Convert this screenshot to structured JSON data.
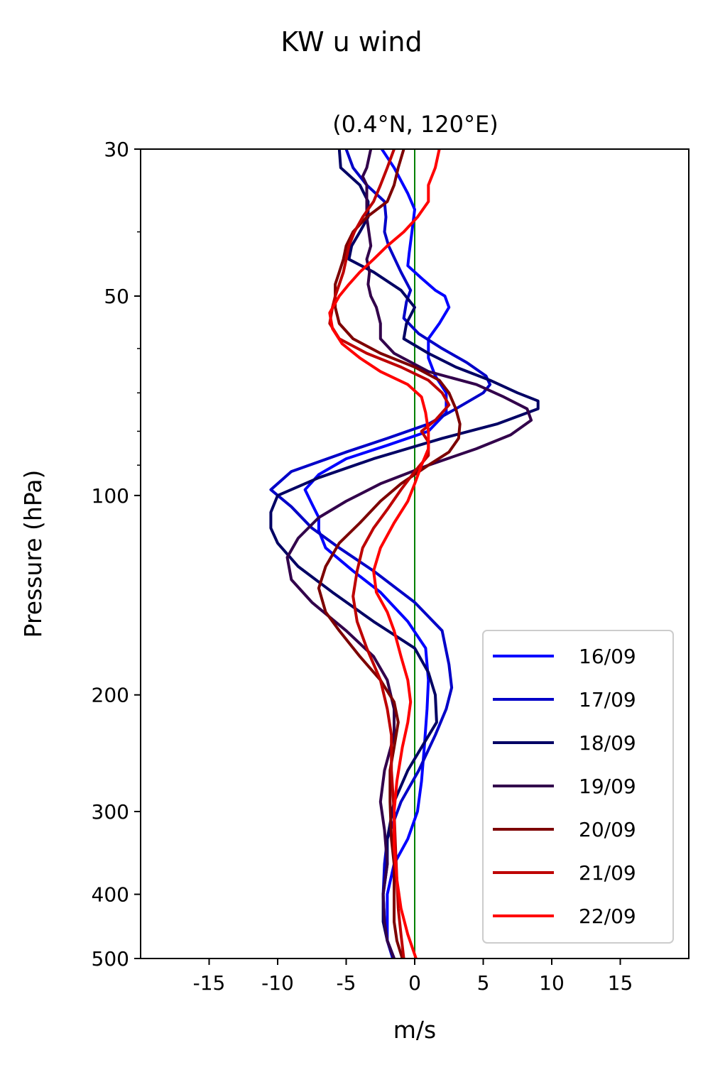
{
  "chart_data": {
    "type": "line",
    "suptitle": "KW u wind",
    "title": "(0.4°N, 120°E)",
    "xlabel": "m/s",
    "ylabel": "Pressure (hPa)",
    "xlim": [
      -20,
      20
    ],
    "ylim": [
      500,
      30
    ],
    "yscale": "log",
    "xticks": [
      -15,
      -10,
      -5,
      0,
      5,
      10,
      15
    ],
    "xtick_labels": [
      "-15",
      "-10",
      "-5",
      "0",
      "5",
      "10",
      "15"
    ],
    "yticks": [
      30,
      50,
      100,
      200,
      300,
      400,
      500
    ],
    "ytick_labels": [
      "30",
      "50",
      "100",
      "200",
      "300",
      "400",
      "500"
    ],
    "yminor_ticks": [
      40,
      60,
      70,
      80,
      90
    ],
    "zero_line": {
      "x": 0,
      "color": "#008000"
    },
    "legend_position": "lower-right",
    "grid": false,
    "series": [
      {
        "name": "16/09",
        "color": "#0000ff",
        "points": [
          [
            -2.4,
            30
          ],
          [
            -1.5,
            32
          ],
          [
            -0.5,
            35
          ],
          [
            0,
            37
          ],
          [
            -0.2,
            40
          ],
          [
            -0.4,
            43
          ],
          [
            -0.5,
            45
          ],
          [
            0.5,
            47
          ],
          [
            1.5,
            49
          ],
          [
            2.2,
            50
          ],
          [
            2.5,
            52
          ],
          [
            1.8,
            55
          ],
          [
            1,
            58
          ],
          [
            1,
            62
          ],
          [
            1.5,
            66
          ],
          [
            2.3,
            70
          ],
          [
            2.3,
            75
          ],
          [
            1,
            80
          ],
          [
            -2,
            84
          ],
          [
            -5,
            88
          ],
          [
            -7,
            93
          ],
          [
            -8,
            98
          ],
          [
            -7.5,
            103
          ],
          [
            -7,
            108
          ],
          [
            -7,
            113
          ],
          [
            -6.5,
            120
          ],
          [
            -4.5,
            130
          ],
          [
            -2.5,
            140
          ],
          [
            -0.5,
            155
          ],
          [
            0.8,
            170
          ],
          [
            1,
            190
          ],
          [
            0.9,
            210
          ],
          [
            0.7,
            240
          ],
          [
            0.5,
            270
          ],
          [
            0.2,
            300
          ],
          [
            -0.5,
            330
          ],
          [
            -1.5,
            360
          ],
          [
            -2,
            400
          ],
          [
            -2,
            440
          ],
          [
            -2,
            470
          ],
          [
            -1.5,
            500
          ]
        ]
      },
      {
        "name": "17/09",
        "color": "#0000c8",
        "points": [
          [
            -5,
            30
          ],
          [
            -4.5,
            32
          ],
          [
            -3.5,
            34
          ],
          [
            -2.2,
            36
          ],
          [
            -2.1,
            38
          ],
          [
            -2.2,
            40
          ],
          [
            -1.9,
            42
          ],
          [
            -1,
            46
          ],
          [
            -0.3,
            49
          ],
          [
            -0.6,
            51
          ],
          [
            -0.8,
            54
          ],
          [
            0.3,
            57
          ],
          [
            2,
            60
          ],
          [
            3.8,
            63
          ],
          [
            5.2,
            66
          ],
          [
            5.5,
            68
          ],
          [
            5,
            70
          ],
          [
            3,
            74
          ],
          [
            1,
            78
          ],
          [
            -2,
            82
          ],
          [
            -5,
            86
          ],
          [
            -9,
            92
          ],
          [
            -10.5,
            98
          ],
          [
            -9,
            104
          ],
          [
            -7.5,
            112
          ],
          [
            -5.5,
            120
          ],
          [
            -3,
            130
          ],
          [
            0,
            145
          ],
          [
            2,
            160
          ],
          [
            2.5,
            180
          ],
          [
            2.7,
            195
          ],
          [
            2.3,
            210
          ],
          [
            1.5,
            230
          ],
          [
            0.3,
            260
          ],
          [
            -1,
            290
          ],
          [
            -2,
            330
          ],
          [
            -2.2,
            360
          ],
          [
            -2.3,
            400
          ],
          [
            -2.2,
            440
          ],
          [
            -2,
            470
          ],
          [
            -1.6,
            500
          ]
        ]
      },
      {
        "name": "18/09",
        "color": "#000064",
        "points": [
          [
            -5.5,
            30
          ],
          [
            -5.4,
            32
          ],
          [
            -4,
            34
          ],
          [
            -3.4,
            36
          ],
          [
            -3.4,
            38
          ],
          [
            -4,
            40
          ],
          [
            -4.6,
            42
          ],
          [
            -4.8,
            44
          ],
          [
            -3,
            46
          ],
          [
            -1,
            49
          ],
          [
            0,
            52
          ],
          [
            -0.6,
            55
          ],
          [
            -0.8,
            58
          ],
          [
            1,
            61
          ],
          [
            3,
            64
          ],
          [
            5.5,
            67
          ],
          [
            7.5,
            70
          ],
          [
            9,
            72
          ],
          [
            9,
            74
          ],
          [
            6,
            78
          ],
          [
            2,
            82
          ],
          [
            -3,
            88
          ],
          [
            -7,
            94
          ],
          [
            -10,
            100
          ],
          [
            -10.5,
            106
          ],
          [
            -10.5,
            112
          ],
          [
            -10,
            118
          ],
          [
            -8.5,
            128
          ],
          [
            -6,
            140
          ],
          [
            -3,
            155
          ],
          [
            0,
            170
          ],
          [
            1,
            185
          ],
          [
            1.5,
            200
          ],
          [
            1.6,
            220
          ],
          [
            0.5,
            240
          ],
          [
            -0.5,
            260
          ],
          [
            -1.5,
            290
          ],
          [
            -2,
            330
          ],
          [
            -2,
            360
          ],
          [
            -2.3,
            400
          ],
          [
            -2.3,
            440
          ],
          [
            -2,
            470
          ],
          [
            -1.5,
            500
          ]
        ]
      },
      {
        "name": "19/09",
        "color": "#32004b",
        "points": [
          [
            -3.2,
            30
          ],
          [
            -3.5,
            32
          ],
          [
            -3.8,
            33
          ],
          [
            -3.5,
            34
          ],
          [
            -3.5,
            36
          ],
          [
            -3.5,
            38
          ],
          [
            -3.2,
            42
          ],
          [
            -3.5,
            44
          ],
          [
            -3.3,
            46
          ],
          [
            -3.4,
            48
          ],
          [
            -3.2,
            50
          ],
          [
            -2.8,
            52
          ],
          [
            -2.5,
            55
          ],
          [
            -2.5,
            58
          ],
          [
            -1.5,
            61
          ],
          [
            1,
            65
          ],
          [
            4.5,
            68
          ],
          [
            6.5,
            71
          ],
          [
            8.2,
            74
          ],
          [
            8.5,
            77
          ],
          [
            7,
            81
          ],
          [
            4.5,
            85
          ],
          [
            1,
            90
          ],
          [
            -2.5,
            96
          ],
          [
            -5,
            102
          ],
          [
            -7,
            108
          ],
          [
            -8.5,
            116
          ],
          [
            -9.3,
            124
          ],
          [
            -9,
            134
          ],
          [
            -7.5,
            145
          ],
          [
            -5,
            160
          ],
          [
            -3,
            175
          ],
          [
            -2,
            190
          ],
          [
            -1.5,
            210
          ],
          [
            -1.5,
            230
          ],
          [
            -2.2,
            260
          ],
          [
            -2.5,
            290
          ],
          [
            -2.2,
            320
          ],
          [
            -2,
            360
          ],
          [
            -2.3,
            400
          ],
          [
            -2.2,
            440
          ],
          [
            -2,
            470
          ],
          [
            -1.5,
            500
          ]
        ]
      },
      {
        "name": "20/09",
        "color": "#7d0000",
        "points": [
          [
            -0.8,
            30
          ],
          [
            -1.2,
            32
          ],
          [
            -1.5,
            34
          ],
          [
            -2,
            36
          ],
          [
            -3.5,
            38
          ],
          [
            -4.5,
            40
          ],
          [
            -5,
            42
          ],
          [
            -5.2,
            44
          ],
          [
            -5.5,
            46
          ],
          [
            -5.8,
            48
          ],
          [
            -5.8,
            50
          ],
          [
            -5.8,
            52
          ],
          [
            -5.5,
            55
          ],
          [
            -4.5,
            58
          ],
          [
            -2.5,
            61
          ],
          [
            0,
            64
          ],
          [
            1.8,
            67
          ],
          [
            2.5,
            70
          ],
          [
            3,
            74
          ],
          [
            3.3,
            78
          ],
          [
            3.2,
            82
          ],
          [
            2.5,
            86
          ],
          [
            1,
            90
          ],
          [
            -1,
            96
          ],
          [
            -2.5,
            102
          ],
          [
            -4,
            110
          ],
          [
            -5.5,
            118
          ],
          [
            -6.5,
            128
          ],
          [
            -7,
            138
          ],
          [
            -6.5,
            150
          ],
          [
            -5.5,
            160
          ],
          [
            -4,
            175
          ],
          [
            -2.5,
            190
          ],
          [
            -1.5,
            205
          ],
          [
            -1.2,
            220
          ],
          [
            -1.5,
            240
          ],
          [
            -1.8,
            260
          ],
          [
            -1.8,
            290
          ],
          [
            -1.7,
            330
          ],
          [
            -1.5,
            360
          ],
          [
            -1.5,
            400
          ],
          [
            -1.5,
            440
          ],
          [
            -1.3,
            470
          ],
          [
            -0.9,
            500
          ]
        ]
      },
      {
        "name": "21/09",
        "color": "#be0000",
        "points": [
          [
            -1.5,
            30
          ],
          [
            -2,
            32
          ],
          [
            -2.5,
            34
          ],
          [
            -3,
            36
          ],
          [
            -3.8,
            38
          ],
          [
            -4.4,
            40
          ],
          [
            -4.8,
            42
          ],
          [
            -5,
            44
          ],
          [
            -5.2,
            46
          ],
          [
            -5.5,
            48
          ],
          [
            -5.8,
            50
          ],
          [
            -6,
            52
          ],
          [
            -6.2,
            55
          ],
          [
            -5.5,
            58
          ],
          [
            -3.5,
            61
          ],
          [
            -1,
            64
          ],
          [
            1,
            67
          ],
          [
            2,
            70
          ],
          [
            2.5,
            73
          ],
          [
            1.5,
            77
          ],
          [
            0.5,
            80
          ],
          [
            1,
            83
          ],
          [
            1,
            87
          ],
          [
            0,
            92
          ],
          [
            -1,
            98
          ],
          [
            -2,
            105
          ],
          [
            -3,
            112
          ],
          [
            -3.8,
            120
          ],
          [
            -4.2,
            130
          ],
          [
            -4.5,
            142
          ],
          [
            -4.2,
            155
          ],
          [
            -3.5,
            170
          ],
          [
            -2.5,
            190
          ],
          [
            -2,
            210
          ],
          [
            -1.7,
            230
          ],
          [
            -1.7,
            260
          ],
          [
            -1.5,
            300
          ],
          [
            -1.4,
            340
          ],
          [
            -1.3,
            380
          ],
          [
            -1.2,
            420
          ],
          [
            -1,
            460
          ],
          [
            -0.8,
            500
          ]
        ]
      },
      {
        "name": "22/09",
        "color": "#ff0000",
        "points": [
          [
            1.8,
            30
          ],
          [
            1.5,
            32
          ],
          [
            1,
            34
          ],
          [
            1,
            36
          ],
          [
            0.2,
            38
          ],
          [
            -0.8,
            40
          ],
          [
            -2,
            42
          ],
          [
            -3,
            44
          ],
          [
            -4,
            46
          ],
          [
            -4.8,
            48
          ],
          [
            -5.5,
            50
          ],
          [
            -6.2,
            53
          ],
          [
            -6,
            56
          ],
          [
            -5.3,
            59
          ],
          [
            -4,
            62
          ],
          [
            -2.5,
            65
          ],
          [
            -0.5,
            68
          ],
          [
            0.5,
            71
          ],
          [
            0.8,
            75
          ],
          [
            1,
            80
          ],
          [
            1,
            85
          ],
          [
            0.5,
            90
          ],
          [
            0,
            96
          ],
          [
            -0.5,
            102
          ],
          [
            -1.5,
            110
          ],
          [
            -2.5,
            120
          ],
          [
            -3,
            130
          ],
          [
            -2.8,
            140
          ],
          [
            -2,
            150
          ],
          [
            -1.5,
            160
          ],
          [
            -1,
            175
          ],
          [
            -0.5,
            190
          ],
          [
            -0.3,
            205
          ],
          [
            -0.5,
            220
          ],
          [
            -0.9,
            240
          ],
          [
            -1.3,
            270
          ],
          [
            -1.5,
            300
          ],
          [
            -1.5,
            340
          ],
          [
            -1.3,
            380
          ],
          [
            -1,
            420
          ],
          [
            -0.5,
            460
          ],
          [
            0.1,
            500
          ]
        ]
      }
    ]
  }
}
